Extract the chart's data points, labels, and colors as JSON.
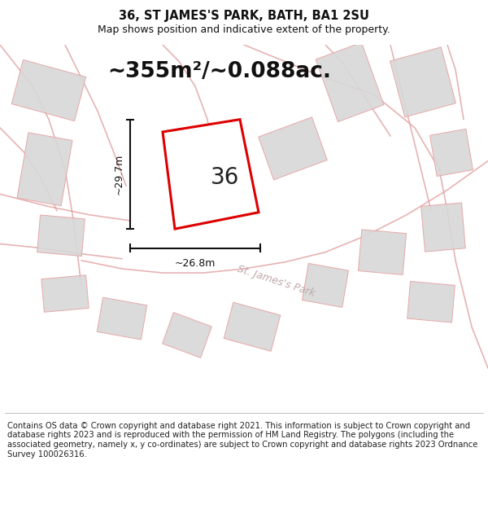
{
  "title_line1": "36, ST JAMES'S PARK, BATH, BA1 2SU",
  "title_line2": "Map shows position and indicative extent of the property.",
  "area_text": "~355m²/~0.088ac.",
  "number_label": "36",
  "dim_width": "~26.8m",
  "dim_height": "~29.7m",
  "street_label": "St. James's Park",
  "footer_text": "Contains OS data © Crown copyright and database right 2021. This information is subject to Crown copyright and database rights 2023 and is reproduced with the permission of HM Land Registry. The polygons (including the associated geometry, namely x, y co-ordinates) are subject to Crown copyright and database rights 2023 Ordnance Survey 100026316.",
  "map_bg": "#f2f2f2",
  "highlight_fill": "#ffffff",
  "highlight_edge": "#dd0000",
  "neighbor_fill": "#d8d8d8",
  "neighbor_edge": "#e8a0a0",
  "road_color": "#e0a0a0",
  "dim_line_color": "#111111",
  "title_fontsize": 10.5,
  "subtitle_fontsize": 9,
  "area_fontsize": 19,
  "label_fontsize": 20,
  "footer_fontsize": 7.2,
  "street_label_color": "#c0a8a8",
  "street_label_fontsize": 9
}
